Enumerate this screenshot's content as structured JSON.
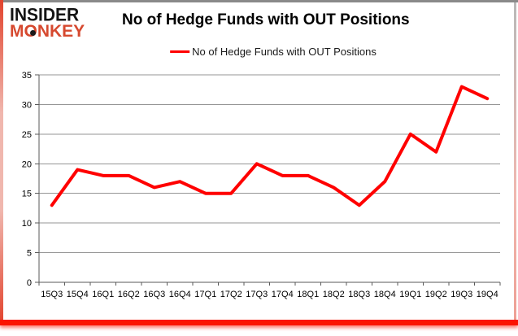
{
  "brand": {
    "line1": "INSIDER",
    "line2": "MONKEY",
    "primary_color": "#141414",
    "secondary_color": "#d6492f"
  },
  "header": {
    "title": "No of Hedge Funds with OUT Positions"
  },
  "legend": {
    "label": "No of Hedge Funds with OUT Positions",
    "line_color": "#ff0000",
    "position": "top"
  },
  "chart_data": {
    "type": "line",
    "title": "No of Hedge Funds with OUT Positions",
    "series_name": "No of Hedge Funds with OUT Positions",
    "categories": [
      "15Q3",
      "15Q4",
      "16Q1",
      "16Q2",
      "16Q3",
      "16Q4",
      "17Q1",
      "17Q2",
      "17Q3",
      "17Q4",
      "18Q1",
      "18Q2",
      "18Q3",
      "18Q4",
      "19Q1",
      "19Q2",
      "19Q3",
      "19Q4"
    ],
    "values": [
      13,
      19,
      18,
      18,
      16,
      17,
      15,
      15,
      20,
      18,
      18,
      16,
      13,
      17,
      25,
      22,
      33,
      31
    ],
    "xlabel": "",
    "ylabel": "",
    "ylim": [
      0,
      35
    ],
    "ytick_step": 5,
    "grid": true,
    "legend_position": "top",
    "line_color": "#ff0000",
    "gridline_color": "#969696",
    "axis_color": "#595959"
  }
}
